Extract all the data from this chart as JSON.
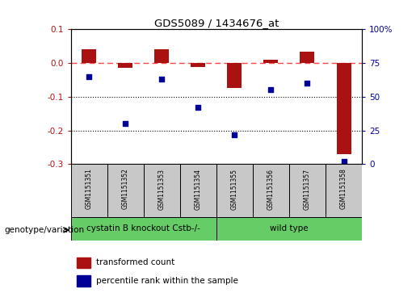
{
  "title": "GDS5089 / 1434676_at",
  "samples": [
    "GSM1151351",
    "GSM1151352",
    "GSM1151353",
    "GSM1151354",
    "GSM1151355",
    "GSM1151356",
    "GSM1151357",
    "GSM1151358"
  ],
  "bar_values": [
    0.04,
    -0.015,
    0.04,
    -0.012,
    -0.075,
    0.01,
    0.033,
    -0.27
  ],
  "dot_percentile": [
    65,
    30,
    63,
    42,
    22,
    55,
    60,
    2
  ],
  "ylim_left": [
    -0.3,
    0.1
  ],
  "ylim_right": [
    0,
    100
  ],
  "yticks_left": [
    0.1,
    0.0,
    -0.1,
    -0.2,
    -0.3
  ],
  "yticks_right": [
    100,
    75,
    50,
    25,
    0
  ],
  "groups": [
    {
      "label": "cystatin B knockout Cstb-/-",
      "start": 0,
      "end": 3,
      "color": "#66CC66"
    },
    {
      "label": "wild type",
      "start": 4,
      "end": 7,
      "color": "#66CC66"
    }
  ],
  "group_label": "genotype/variation",
  "legend_bar_label": "transformed count",
  "legend_dot_label": "percentile rank within the sample",
  "bar_color": "#AA1111",
  "dot_color": "#000099",
  "ref_line_color": "#FF4444",
  "grid_color": "#000000",
  "sample_box_color": "#C8C8C8",
  "bar_width": 0.4
}
